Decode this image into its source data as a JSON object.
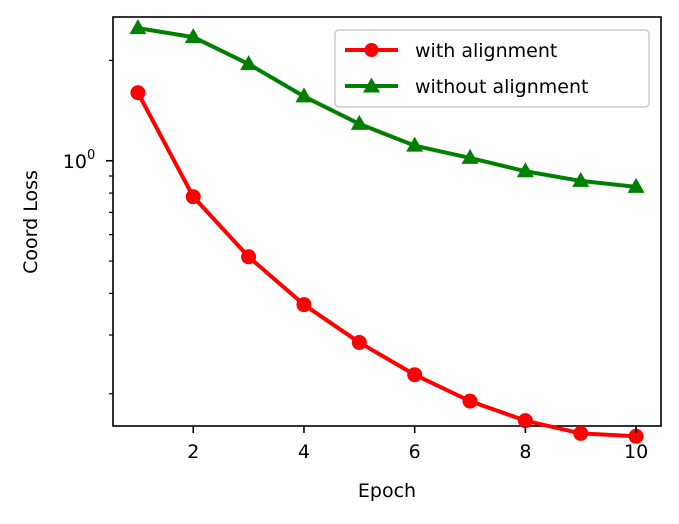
{
  "chart_data": {
    "type": "line",
    "title": "",
    "xlabel": "Epoch",
    "ylabel": "Coord Loss",
    "xlim": [
      0.55,
      10.45
    ],
    "ylim": [
      0.16,
      2.7
    ],
    "yscale": "log",
    "x": [
      1,
      2,
      3,
      4,
      5,
      6,
      7,
      8,
      9,
      10
    ],
    "x_ticks": [
      "2",
      "4",
      "6",
      "8",
      "10"
    ],
    "x_tick_values": [
      2,
      4,
      6,
      8,
      10
    ],
    "y_ticks": [
      {
        "label_base": "10",
        "label_exp": "0",
        "value": 1.0
      }
    ],
    "grid": false,
    "legend_position": "top-right",
    "series": [
      {
        "name": "with alignment",
        "color": "#ff0000",
        "marker": "circle",
        "values": [
          1.6,
          0.78,
          0.515,
          0.37,
          0.285,
          0.228,
          0.19,
          0.166,
          0.152,
          0.149
        ]
      },
      {
        "name": "without alignment",
        "color": "#008000",
        "marker": "triangle",
        "values": [
          2.5,
          2.35,
          1.95,
          1.56,
          1.29,
          1.11,
          1.02,
          0.93,
          0.87,
          0.835
        ]
      }
    ]
  }
}
